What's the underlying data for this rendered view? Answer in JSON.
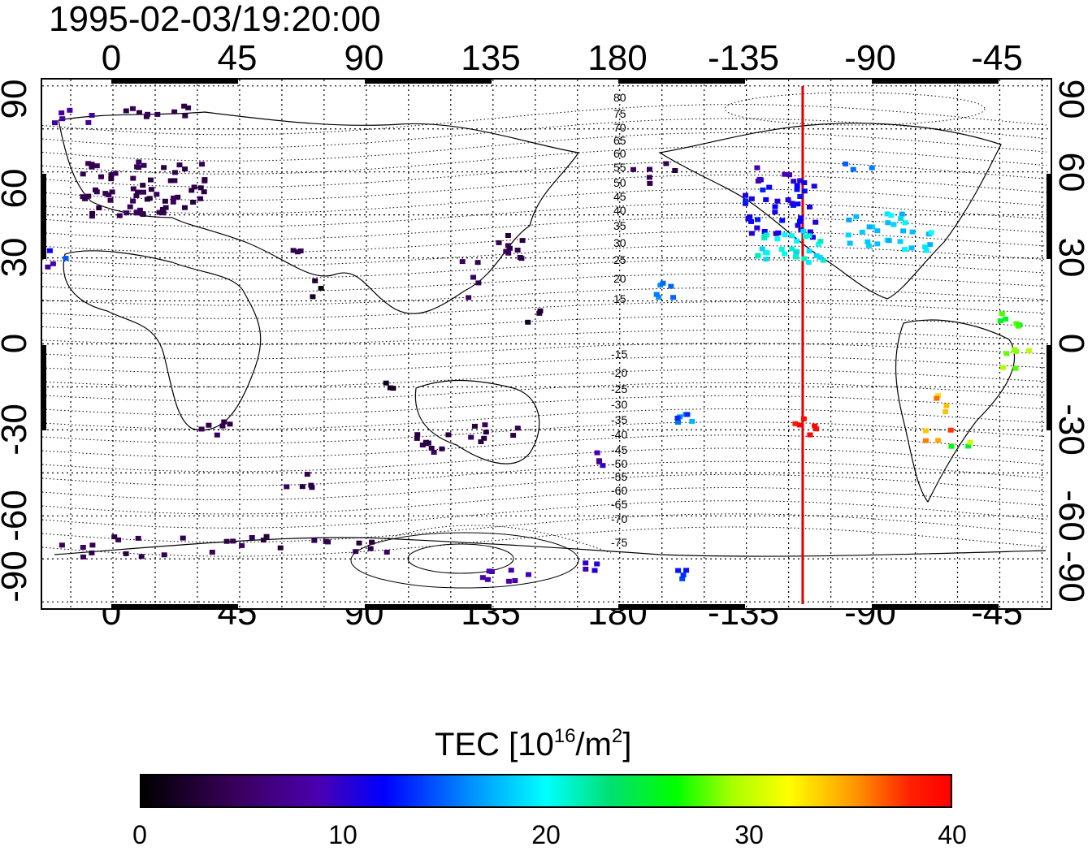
{
  "title": "1995-02-03/19:20:00",
  "lon_tick_labels": [
    "0",
    "45",
    "90",
    "135",
    "180",
    "-135",
    "-90",
    "-45"
  ],
  "lat_tick_labels": [
    "90",
    "60",
    "30",
    "0",
    "-30",
    "-60",
    "-90"
  ],
  "contour_labels_north": [
    "80",
    "75",
    "70",
    "65",
    "60",
    "55",
    "50",
    "45",
    "40",
    "35",
    "30",
    "25",
    "20",
    "15"
  ],
  "contour_labels_south": [
    "-15",
    "-20",
    "-25",
    "-30",
    "-35",
    "-40",
    "-45",
    "-50",
    "-55",
    "-60",
    "-65",
    "-70",
    "-75"
  ],
  "colorbar": {
    "title_prefix": "TEC  [10",
    "title_sup1": "16",
    "title_mid": "/m",
    "title_sup2": "2",
    "title_suffix": "]",
    "ticks": [
      "0",
      "10",
      "20",
      "30",
      "40"
    ],
    "min": 0,
    "max": 40
  },
  "terminator_line_color": "#e00000",
  "terminator_longitude": -115
}
